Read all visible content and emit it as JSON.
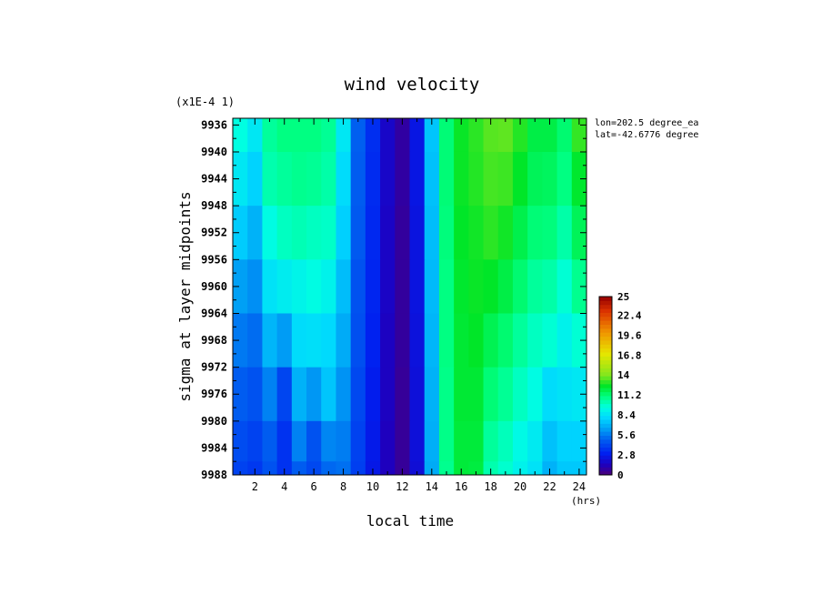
{
  "chart_data": {
    "type": "heatmap",
    "title": "wind velocity",
    "scale_note": "(x1E-4 1)",
    "xlabel": "local time",
    "xunit": "(hrs)",
    "ylabel": "sigma at layer midpoints",
    "annotation": [
      "lon=202.5 degree_ea",
      "lat=-42.6776 degree"
    ],
    "x": [
      1,
      2,
      3,
      4,
      5,
      6,
      7,
      8,
      9,
      10,
      11,
      12,
      13,
      14,
      15,
      16,
      17,
      18,
      19,
      20,
      21,
      22,
      23,
      24
    ],
    "xlim": [
      0.5,
      24.5
    ],
    "xticks": [
      "2",
      "4",
      "6",
      "8",
      "10",
      "12",
      "14",
      "16",
      "18",
      "20",
      "22",
      "24"
    ],
    "y": [
      9936,
      9944,
      9952,
      9960,
      9968,
      9976,
      9984,
      9988
    ],
    "ylim": [
      9988,
      9935
    ],
    "yticks": [
      "9936",
      "9940",
      "9944",
      "9948",
      "9952",
      "9956",
      "9960",
      "9964",
      "9968",
      "9972",
      "9976",
      "9980",
      "9984",
      "9988"
    ],
    "z": [
      [
        9.5,
        8.6,
        10.6,
        11.0,
        11.0,
        11.0,
        10.7,
        8.6,
        5.0,
        3.5,
        1.8,
        0.9,
        2.6,
        7.5,
        11.2,
        12.6,
        13.0,
        13.5,
        13.6,
        12.9,
        12.0,
        12.0,
        11.3,
        13.1
      ],
      [
        8.6,
        7.9,
        10.3,
        10.6,
        10.8,
        10.7,
        10.4,
        8.2,
        4.9,
        3.4,
        1.8,
        0.9,
        2.6,
        7.4,
        11.2,
        12.6,
        12.9,
        13.3,
        13.2,
        12.5,
        11.7,
        11.6,
        11.0,
        12.4
      ],
      [
        7.7,
        7.0,
        9.4,
        10.0,
        10.2,
        10.0,
        9.9,
        7.8,
        4.8,
        3.3,
        1.7,
        0.8,
        2.5,
        7.3,
        11.1,
        12.5,
        12.7,
        13.0,
        12.7,
        11.9,
        11.2,
        11.1,
        10.4,
        11.7
      ],
      [
        6.5,
        6.1,
        8.4,
        8.8,
        9.1,
        9.4,
        9.0,
        7.3,
        4.6,
        3.2,
        1.7,
        0.8,
        2.5,
        7.2,
        11.0,
        12.4,
        12.6,
        12.5,
        12.0,
        11.3,
        10.6,
        10.4,
        9.7,
        10.8
      ],
      [
        5.6,
        5.3,
        7.1,
        6.4,
        8.2,
        8.3,
        8.1,
        6.8,
        4.5,
        3.1,
        1.6,
        0.8,
        2.4,
        7.1,
        11.0,
        12.3,
        12.5,
        11.8,
        11.3,
        10.6,
        10.0,
        9.7,
        9.0,
        9.7
      ],
      [
        4.9,
        4.6,
        5.8,
        4.2,
        7.0,
        6.3,
        7.5,
        6.2,
        4.3,
        2.9,
        1.6,
        0.7,
        2.3,
        7.0,
        10.9,
        12.3,
        12.3,
        11.2,
        10.7,
        10.0,
        9.4,
        8.2,
        8.4,
        8.6
      ],
      [
        4.4,
        4.1,
        4.9,
        3.6,
        5.8,
        4.6,
        5.9,
        5.7,
        4.1,
        2.8,
        1.5,
        0.7,
        2.3,
        6.9,
        10.9,
        12.2,
        12.2,
        10.6,
        10.1,
        9.3,
        8.7,
        7.4,
        7.9,
        7.9
      ],
      [
        4.1,
        3.8,
        4.6,
        3.6,
        4.9,
        4.3,
        5.2,
        5.4,
        4.0,
        2.7,
        1.5,
        0.7,
        2.2,
        6.8,
        10.8,
        12.2,
        12.1,
        10.3,
        9.8,
        9.0,
        8.4,
        7.0,
        7.6,
        7.6
      ]
    ],
    "colorbar": {
      "min": 0,
      "max": 25,
      "labels": [
        "25",
        "22.4",
        "19.6",
        "16.8",
        "14",
        "11.2",
        "8.4",
        "5.6",
        "2.8",
        "0"
      ]
    }
  }
}
